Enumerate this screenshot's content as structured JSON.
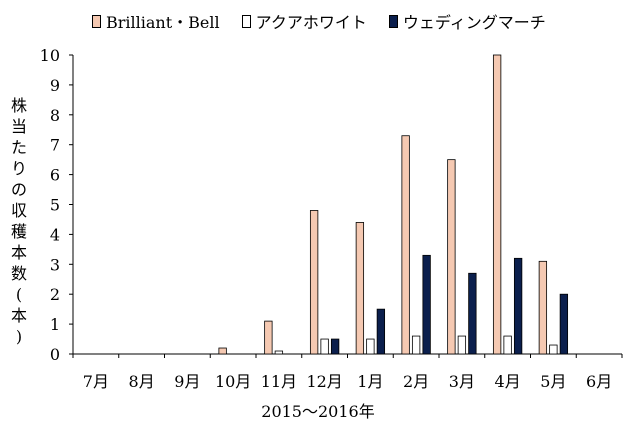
{
  "chart_data": {
    "type": "bar",
    "categories": [
      "7月",
      "8月",
      "9月",
      "10月",
      "11月",
      "12月",
      "1月",
      "2月",
      "3月",
      "4月",
      "5月",
      "6月"
    ],
    "series": [
      {
        "name": "Brilliant・Bell",
        "color": "#f5c9b2",
        "values": [
          0,
          0,
          0,
          0.2,
          1.1,
          4.8,
          4.4,
          7.3,
          6.5,
          10,
          3.1,
          0
        ]
      },
      {
        "name": "アクアホワイト",
        "color": "#ffffff",
        "values": [
          0,
          0,
          0,
          0,
          0.1,
          0.5,
          0.5,
          0.6,
          0.6,
          0.6,
          0.3,
          0
        ]
      },
      {
        "name": "ウェディングマーチ",
        "color": "#0b1f4d",
        "values": [
          0,
          0,
          0,
          0,
          0,
          0.5,
          1.5,
          3.3,
          2.7,
          3.2,
          2.0,
          0
        ]
      }
    ],
    "yticks": [
      "0",
      "1",
      "2",
      "3",
      "4",
      "5",
      "6",
      "7",
      "8",
      "9",
      "10"
    ],
    "ylim": [
      0,
      10
    ],
    "ylabel": "株当たりの収穫本数(本)",
    "xlabel": "2015～2016年",
    "title": "",
    "grid": false,
    "legend_position": "top"
  }
}
